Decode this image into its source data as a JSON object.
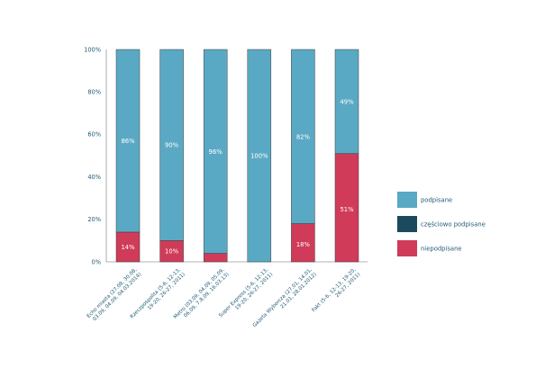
{
  "chart_data": {
    "type": "bar",
    "stacked": true,
    "categories": [
      "Echo miasta (27.08, 30.08, 03.09, 04.09, 04.03.2014)",
      "Rzeczpospolita (5-6, 12-13, 19-20, 26-27, 2011)",
      "Metro (03.09, 04.09, 05.09, 06.09, 7.8.09, 16.03.13)",
      "Super Express (5-6, 12-13, 19-20, 26-27, 2011)",
      "Gazeta Wyborcza (27.01, 14.01, 21.01, 28.01.2012)",
      "Fakt (5-6, 12-13, 19-20, 26-27, 2011)"
    ],
    "series": [
      {
        "name": "podpisane",
        "color": "#5aa9c4",
        "values": [
          86,
          90,
          96,
          100,
          82,
          49
        ],
        "labels": [
          "86%",
          "90%",
          "96%",
          "100%",
          "82%",
          "49%"
        ]
      },
      {
        "name": "częściowo podpisane",
        "color": "#1b4a5e",
        "values": [
          0,
          0,
          0,
          0,
          0,
          0
        ],
        "labels": [
          "",
          "",
          "",
          "",
          "",
          ""
        ]
      },
      {
        "name": "niepodpisane",
        "color": "#cf3b58",
        "values": [
          14,
          10,
          4,
          0,
          18,
          51
        ],
        "labels": [
          "14%",
          "10%",
          "4%",
          "",
          "18%",
          "51%"
        ]
      }
    ],
    "yticks": [
      "0%",
      "20%",
      "40%",
      "60%",
      "80%",
      "100%"
    ],
    "ylim": [
      0,
      100
    ],
    "grid": false,
    "legend_position": "right",
    "title": "",
    "xlabel": "",
    "ylabel": ""
  }
}
